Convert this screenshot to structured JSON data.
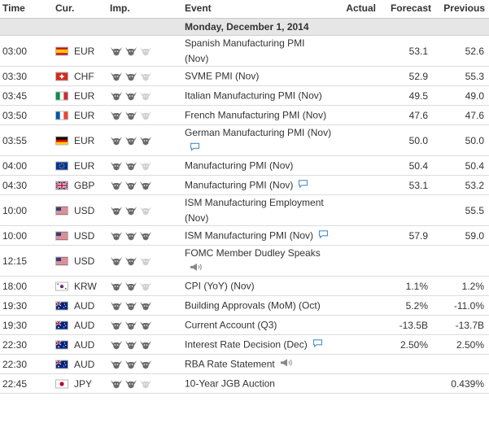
{
  "header": {
    "time": "Time",
    "currency": "Cur.",
    "importance": "Imp.",
    "event": "Event",
    "actual": "Actual",
    "forecast": "Forecast",
    "previous": "Previous"
  },
  "day": "Monday, December 1, 2014",
  "colors": {
    "bull_on": "#6b6b6b",
    "bull_off": "#d0d0d0",
    "icon": "#4a90c8"
  },
  "rows": [
    {
      "time": "03:00",
      "flag": "ES",
      "currency": "EUR",
      "imp": 2,
      "event_l1": "Spanish Manufacturing PMI",
      "event_l2": "(Nov)",
      "icon": "",
      "actual": "",
      "forecast": "53.1",
      "previous": "52.6"
    },
    {
      "time": "03:30",
      "flag": "CH",
      "currency": "CHF",
      "imp": 2,
      "event_l1": "SVME PMI (Nov)",
      "event_l2": "",
      "icon": "",
      "actual": "",
      "forecast": "52.9",
      "previous": "55.3"
    },
    {
      "time": "03:45",
      "flag": "IT",
      "currency": "EUR",
      "imp": 2,
      "event_l1": "Italian Manufacturing PMI (Nov)",
      "event_l2": "",
      "icon": "",
      "actual": "",
      "forecast": "49.5",
      "previous": "49.0"
    },
    {
      "time": "03:50",
      "flag": "FR",
      "currency": "EUR",
      "imp": 2,
      "event_l1": "French Manufacturing PMI (Nov)",
      "event_l2": "",
      "icon": "",
      "actual": "",
      "forecast": "47.6",
      "previous": "47.6"
    },
    {
      "time": "03:55",
      "flag": "DE",
      "currency": "EUR",
      "imp": 3,
      "event_l1": "German Manufacturing PMI (Nov)",
      "event_l2": "",
      "icon": "speech-bubble-icon",
      "icon_line2": true,
      "actual": "",
      "forecast": "50.0",
      "previous": "50.0"
    },
    {
      "time": "04:00",
      "flag": "EU",
      "currency": "EUR",
      "imp": 2,
      "event_l1": "Manufacturing PMI (Nov)",
      "event_l2": "",
      "icon": "",
      "actual": "",
      "forecast": "50.4",
      "previous": "50.4"
    },
    {
      "time": "04:30",
      "flag": "GB",
      "currency": "GBP",
      "imp": 3,
      "event_l1": "Manufacturing PMI (Nov)",
      "event_l2": "",
      "icon": "speech-bubble-icon",
      "actual": "",
      "forecast": "53.1",
      "previous": "53.2"
    },
    {
      "time": "10:00",
      "flag": "US",
      "currency": "USD",
      "imp": 2,
      "event_l1": "ISM Manufacturing Employment",
      "event_l2": "(Nov)",
      "icon": "",
      "actual": "",
      "forecast": "",
      "previous": "55.5"
    },
    {
      "time": "10:00",
      "flag": "US",
      "currency": "USD",
      "imp": 3,
      "event_l1": "ISM Manufacturing PMI (Nov)",
      "event_l2": "",
      "icon": "speech-bubble-icon",
      "actual": "",
      "forecast": "57.9",
      "previous": "59.0"
    },
    {
      "time": "12:15",
      "flag": "US",
      "currency": "USD",
      "imp": 2,
      "event_l1": "FOMC Member Dudley Speaks",
      "event_l2": "",
      "icon": "speaker-icon",
      "icon_line2": true,
      "actual": "",
      "forecast": "",
      "previous": ""
    },
    {
      "time": "18:00",
      "flag": "KR",
      "currency": "KRW",
      "imp": 2,
      "event_l1": "CPI (YoY) (Nov)",
      "event_l2": "",
      "icon": "",
      "actual": "",
      "forecast": "1.1%",
      "previous": "1.2%"
    },
    {
      "time": "19:30",
      "flag": "AU",
      "currency": "AUD",
      "imp": 3,
      "event_l1": "Building Approvals (MoM) (Oct)",
      "event_l2": "",
      "icon": "",
      "actual": "",
      "forecast": "5.2%",
      "previous": "-11.0%"
    },
    {
      "time": "19:30",
      "flag": "AU",
      "currency": "AUD",
      "imp": 3,
      "event_l1": "Current Account (Q3)",
      "event_l2": "",
      "icon": "",
      "actual": "",
      "forecast": "-13.5B",
      "previous": "-13.7B"
    },
    {
      "time": "22:30",
      "flag": "AU",
      "currency": "AUD",
      "imp": 3,
      "event_l1": "Interest Rate Decision (Dec)",
      "event_l2": "",
      "icon": "speech-bubble-icon",
      "actual": "",
      "forecast": "2.50%",
      "previous": "2.50%"
    },
    {
      "time": "22:30",
      "flag": "AU",
      "currency": "AUD",
      "imp": 3,
      "event_l1": "RBA Rate Statement",
      "event_l2": "",
      "icon": "speaker-icon",
      "actual": "",
      "forecast": "",
      "previous": ""
    },
    {
      "time": "22:45",
      "flag": "JP",
      "currency": "JPY",
      "imp": 2,
      "event_l1": "10-Year JGB Auction",
      "event_l2": "",
      "icon": "",
      "actual": "",
      "forecast": "",
      "previous": "0.439%"
    }
  ]
}
